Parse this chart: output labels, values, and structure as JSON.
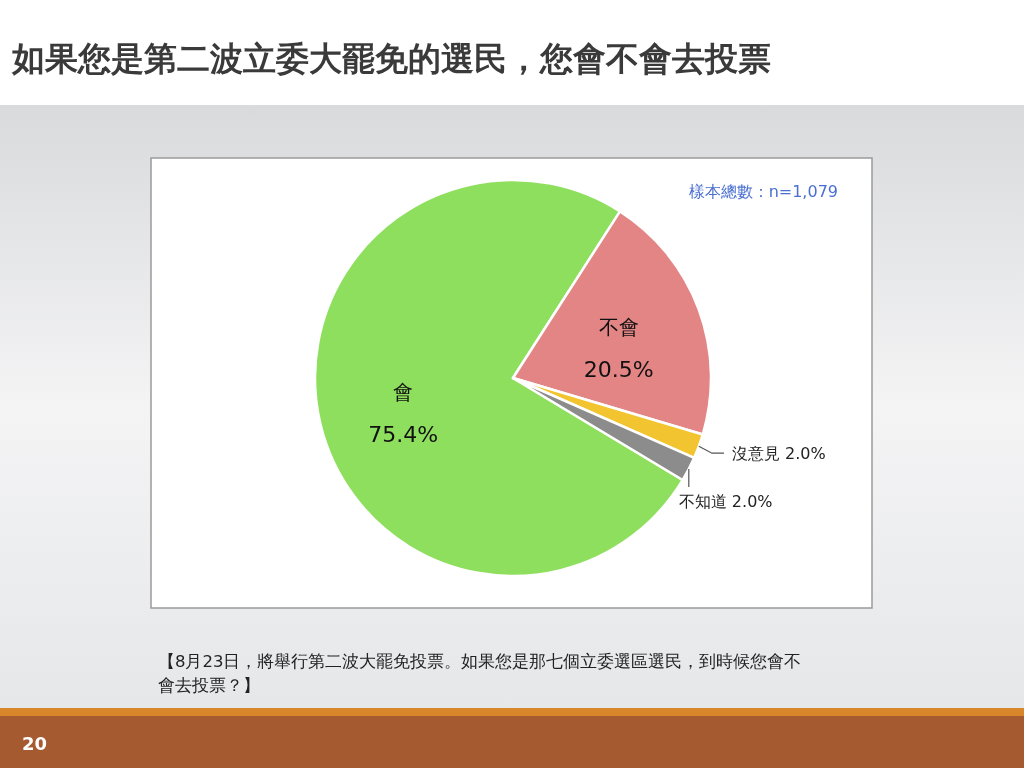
{
  "chart_data": {
    "type": "pie",
    "title": "如果您是第二波立委大罷免的選民，您會不會去投票",
    "categories": [
      "會",
      "不會",
      "沒意見",
      "不知道"
    ],
    "values": [
      75.4,
      20.5,
      2.0,
      2.0
    ],
    "colors": [
      "#8fdf5f",
      "#e38585",
      "#f2c530",
      "#8c8c8c"
    ],
    "value_labels": [
      "75.4%",
      "20.5%",
      "2.0%",
      "2.0%"
    ],
    "annotations": [
      "樣本總數：n=1,079",
      "【8月23日，將舉行第二波大罷免投票。如果您是那七個立委選區選民，到時候您會不會去投票？】",
      "20"
    ]
  }
}
